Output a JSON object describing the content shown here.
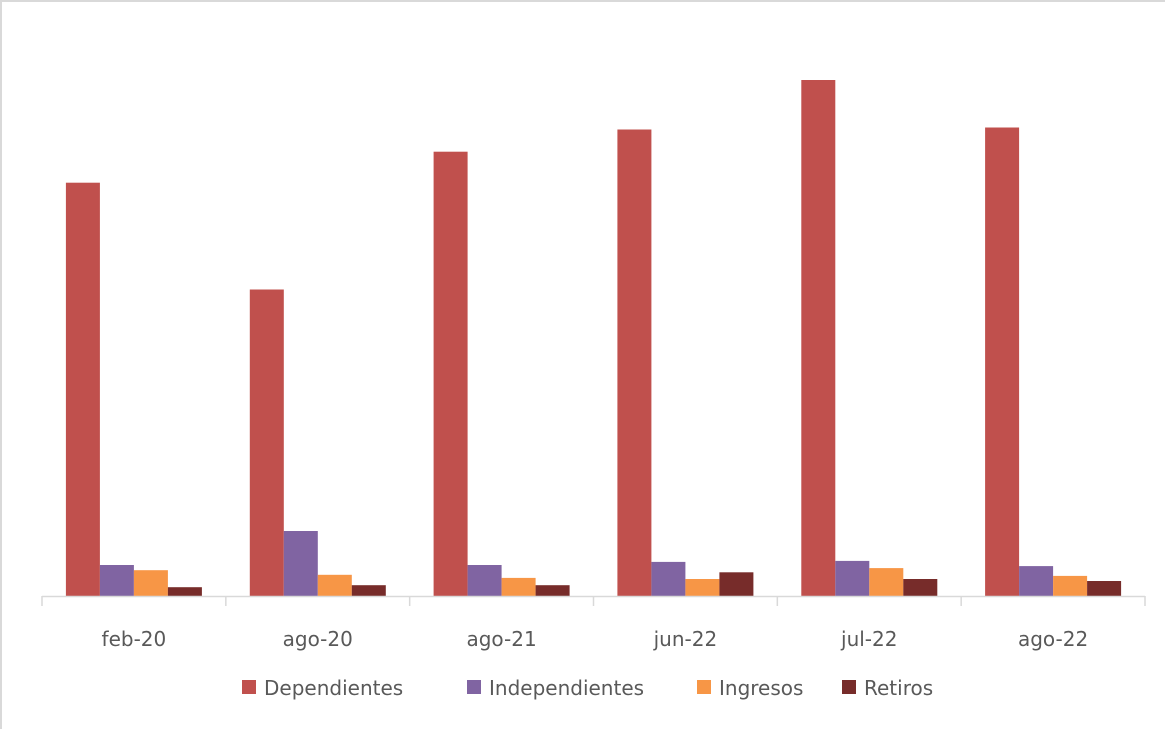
{
  "chart_data": {
    "type": "bar",
    "title": "",
    "xlabel": "",
    "ylabel": "",
    "categories": [
      "feb-20",
      "ago-20",
      "ago-21",
      "jun-22",
      "jul-22",
      "ago-22"
    ],
    "ylim": [
      0,
      100
    ],
    "grid": false,
    "legend_position": "bottom",
    "series": [
      {
        "name": "Dependientes",
        "color": "#c0504d",
        "values": [
          80.1,
          59.4,
          86.1,
          90.4,
          100.0,
          90.8
        ]
      },
      {
        "name": "Independientes",
        "color": "#8064a2",
        "values": [
          6.0,
          12.6,
          6.0,
          6.6,
          6.8,
          5.8
        ]
      },
      {
        "name": "Ingresos",
        "color": "#f79646",
        "values": [
          5.0,
          4.1,
          3.5,
          3.3,
          5.4,
          3.9
        ]
      },
      {
        "name": "Retiros",
        "color": "#772c2a",
        "values": [
          1.7,
          2.1,
          2.1,
          4.6,
          3.3,
          2.9
        ]
      }
    ]
  }
}
